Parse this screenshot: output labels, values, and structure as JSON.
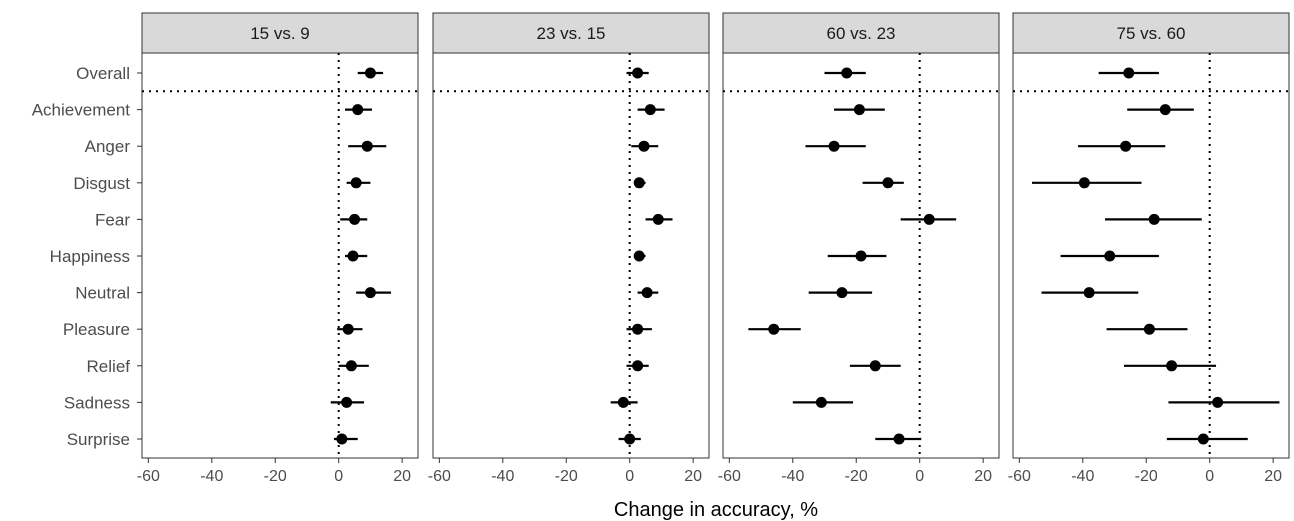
{
  "chart_data": {
    "type": "dot-and-whisker (faceted)",
    "xlabel": "Change in accuracy, %",
    "ylabel": "",
    "xlim": [
      -62,
      25
    ],
    "x_ticks": [
      -60,
      -40,
      -20,
      0,
      20
    ],
    "x_tick_labels": [
      "-60",
      "-40",
      "-20",
      "0",
      "20"
    ],
    "reference_line_x": 0,
    "separator_after_category": "Overall",
    "categories": [
      "Overall",
      "Achievement",
      "Anger",
      "Disgust",
      "Fear",
      "Happiness",
      "Neutral",
      "Pleasure",
      "Relief",
      "Sadness",
      "Surprise"
    ],
    "grid": false,
    "facets": [
      {
        "title": "15 vs. 9",
        "points": [
          {
            "category": "Overall",
            "estimate": 10,
            "lower": 6,
            "upper": 14
          },
          {
            "category": "Achievement",
            "estimate": 6,
            "lower": 2,
            "upper": 10.5
          },
          {
            "category": "Anger",
            "estimate": 9,
            "lower": 3,
            "upper": 15
          },
          {
            "category": "Disgust",
            "estimate": 5.5,
            "lower": 2.5,
            "upper": 10
          },
          {
            "category": "Fear",
            "estimate": 5,
            "lower": 0.5,
            "upper": 9
          },
          {
            "category": "Happiness",
            "estimate": 4.5,
            "lower": 2,
            "upper": 9
          },
          {
            "category": "Neutral",
            "estimate": 10,
            "lower": 5.5,
            "upper": 16.5
          },
          {
            "category": "Pleasure",
            "estimate": 3,
            "lower": -0.5,
            "upper": 7.5
          },
          {
            "category": "Relief",
            "estimate": 4,
            "lower": 0,
            "upper": 9.5
          },
          {
            "category": "Sadness",
            "estimate": 2.5,
            "lower": -2.5,
            "upper": 8
          },
          {
            "category": "Surprise",
            "estimate": 1,
            "lower": -1.5,
            "upper": 6
          }
        ]
      },
      {
        "title": "23 vs. 15",
        "points": [
          {
            "category": "Overall",
            "estimate": 2.5,
            "lower": -1,
            "upper": 6
          },
          {
            "category": "Achievement",
            "estimate": 6.5,
            "lower": 2.5,
            "upper": 11
          },
          {
            "category": "Anger",
            "estimate": 4.5,
            "lower": 0.5,
            "upper": 9
          },
          {
            "category": "Disgust",
            "estimate": 3,
            "lower": 1.5,
            "upper": 5
          },
          {
            "category": "Fear",
            "estimate": 9,
            "lower": 5,
            "upper": 13.5
          },
          {
            "category": "Happiness",
            "estimate": 3,
            "lower": 1.5,
            "upper": 5
          },
          {
            "category": "Neutral",
            "estimate": 5.5,
            "lower": 2.5,
            "upper": 9
          },
          {
            "category": "Pleasure",
            "estimate": 2.5,
            "lower": -1,
            "upper": 7
          },
          {
            "category": "Relief",
            "estimate": 2.5,
            "lower": -1,
            "upper": 6
          },
          {
            "category": "Sadness",
            "estimate": -2,
            "lower": -6,
            "upper": 2.5
          },
          {
            "category": "Surprise",
            "estimate": 0,
            "lower": -3.5,
            "upper": 3.5
          }
        ]
      },
      {
        "title": "60 vs. 23",
        "points": [
          {
            "category": "Overall",
            "estimate": -23,
            "lower": -30,
            "upper": -17
          },
          {
            "category": "Achievement",
            "estimate": -19,
            "lower": -27,
            "upper": -11
          },
          {
            "category": "Anger",
            "estimate": -27,
            "lower": -36,
            "upper": -17
          },
          {
            "category": "Disgust",
            "estimate": -10,
            "lower": -18,
            "upper": -5
          },
          {
            "category": "Fear",
            "estimate": 3,
            "lower": -6,
            "upper": 11.5
          },
          {
            "category": "Happiness",
            "estimate": -18.5,
            "lower": -29,
            "upper": -10.5
          },
          {
            "category": "Neutral",
            "estimate": -24.5,
            "lower": -35,
            "upper": -15
          },
          {
            "category": "Pleasure",
            "estimate": -46,
            "lower": -54,
            "upper": -37.5
          },
          {
            "category": "Relief",
            "estimate": -14,
            "lower": -22,
            "upper": -6
          },
          {
            "category": "Sadness",
            "estimate": -31,
            "lower": -40,
            "upper": -21
          },
          {
            "category": "Surprise",
            "estimate": -6.5,
            "lower": -14,
            "upper": 0.5
          }
        ]
      },
      {
        "title": "75 vs. 60",
        "points": [
          {
            "category": "Overall",
            "estimate": -25.5,
            "lower": -35,
            "upper": -16
          },
          {
            "category": "Achievement",
            "estimate": -14,
            "lower": -26,
            "upper": -5
          },
          {
            "category": "Anger",
            "estimate": -26.5,
            "lower": -41.5,
            "upper": -14
          },
          {
            "category": "Disgust",
            "estimate": -39.5,
            "lower": -56,
            "upper": -21.5
          },
          {
            "category": "Fear",
            "estimate": -17.5,
            "lower": -33,
            "upper": -2.5
          },
          {
            "category": "Happiness",
            "estimate": -31.5,
            "lower": -47,
            "upper": -16
          },
          {
            "category": "Neutral",
            "estimate": -38,
            "lower": -53,
            "upper": -22.5
          },
          {
            "category": "Pleasure",
            "estimate": -19,
            "lower": -32.5,
            "upper": -7
          },
          {
            "category": "Relief",
            "estimate": -12,
            "lower": -27,
            "upper": 2
          },
          {
            "category": "Sadness",
            "estimate": 2.5,
            "lower": -13,
            "upper": 22
          },
          {
            "category": "Surprise",
            "estimate": -2,
            "lower": -13.5,
            "upper": 12
          }
        ]
      }
    ],
    "colors": {
      "points": "#000000",
      "strip_fill": "#d9d9d9",
      "panel_border": "#333333",
      "tick_text": "#4d4d4d"
    }
  }
}
